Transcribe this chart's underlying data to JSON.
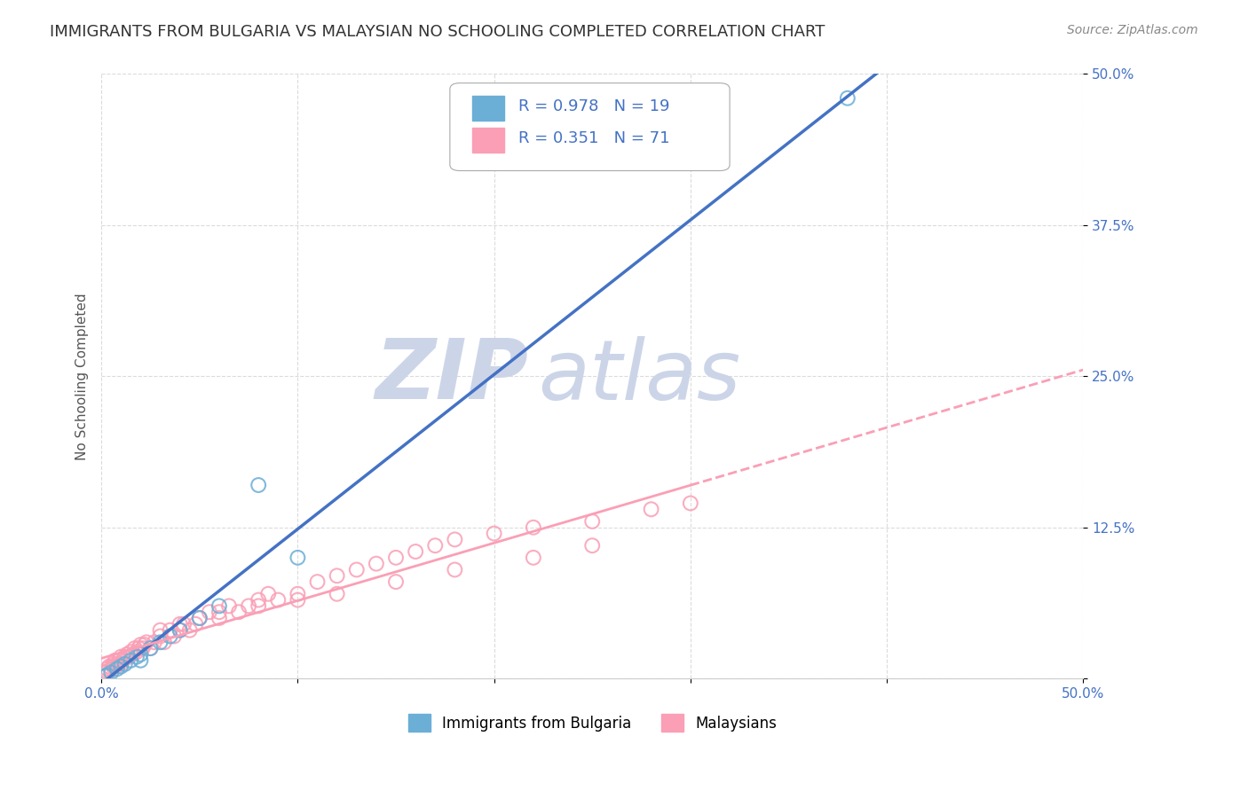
{
  "title": "IMMIGRANTS FROM BULGARIA VS MALAYSIAN NO SCHOOLING COMPLETED CORRELATION CHART",
  "source": "Source: ZipAtlas.com",
  "ylabel": "No Schooling Completed",
  "xlabel": "",
  "xlim": [
    0.0,
    0.5
  ],
  "ylim": [
    0.0,
    0.5
  ],
  "xticks": [
    0.0,
    0.1,
    0.2,
    0.3,
    0.4,
    0.5
  ],
  "yticks": [
    0.0,
    0.125,
    0.25,
    0.375,
    0.5
  ],
  "xticklabels": [
    "0.0%",
    "",
    "",
    "",
    "",
    "50.0%"
  ],
  "yticklabels": [
    "",
    "12.5%",
    "25.0%",
    "37.5%",
    "50.0%"
  ],
  "bulgaria_color": "#6baed6",
  "malaysia_color": "#fa9fb5",
  "bulgaria_R": 0.978,
  "bulgaria_N": 19,
  "malaysia_R": 0.351,
  "malaysia_N": 71,
  "legend_label_bulgaria": "Immigrants from Bulgaria",
  "legend_label_malaysia": "Malaysians",
  "watermark_part1": "ZIP",
  "watermark_part2": "atlas",
  "watermark_color": "#ccd5e8",
  "bulgaria_scatter_x": [
    0.002,
    0.003,
    0.005,
    0.008,
    0.01,
    0.012,
    0.015,
    0.018,
    0.02,
    0.025,
    0.03,
    0.035,
    0.04,
    0.05,
    0.06,
    0.08,
    0.1,
    0.38,
    0.02
  ],
  "bulgaria_scatter_y": [
    0.002,
    0.003,
    0.005,
    0.008,
    0.01,
    0.012,
    0.015,
    0.018,
    0.02,
    0.025,
    0.03,
    0.035,
    0.04,
    0.05,
    0.06,
    0.16,
    0.1,
    0.48,
    0.015
  ],
  "malaysia_scatter_x": [
    0.001,
    0.002,
    0.003,
    0.003,
    0.004,
    0.005,
    0.006,
    0.006,
    0.007,
    0.008,
    0.008,
    0.009,
    0.01,
    0.01,
    0.011,
    0.012,
    0.013,
    0.014,
    0.015,
    0.016,
    0.017,
    0.018,
    0.019,
    0.02,
    0.021,
    0.022,
    0.023,
    0.025,
    0.027,
    0.03,
    0.032,
    0.035,
    0.037,
    0.04,
    0.042,
    0.045,
    0.048,
    0.05,
    0.055,
    0.06,
    0.065,
    0.07,
    0.075,
    0.08,
    0.085,
    0.09,
    0.1,
    0.11,
    0.12,
    0.13,
    0.14,
    0.15,
    0.16,
    0.17,
    0.18,
    0.2,
    0.22,
    0.25,
    0.28,
    0.3,
    0.22,
    0.25,
    0.18,
    0.15,
    0.12,
    0.1,
    0.08,
    0.06,
    0.05,
    0.04,
    0.03
  ],
  "malaysia_scatter_y": [
    0.005,
    0.005,
    0.008,
    0.006,
    0.01,
    0.008,
    0.01,
    0.012,
    0.015,
    0.01,
    0.012,
    0.015,
    0.012,
    0.018,
    0.015,
    0.018,
    0.02,
    0.018,
    0.022,
    0.02,
    0.025,
    0.022,
    0.025,
    0.028,
    0.025,
    0.028,
    0.03,
    0.025,
    0.03,
    0.035,
    0.03,
    0.04,
    0.035,
    0.04,
    0.045,
    0.04,
    0.045,
    0.05,
    0.055,
    0.05,
    0.06,
    0.055,
    0.06,
    0.065,
    0.07,
    0.065,
    0.07,
    0.08,
    0.085,
    0.09,
    0.095,
    0.1,
    0.105,
    0.11,
    0.115,
    0.12,
    0.125,
    0.13,
    0.14,
    0.145,
    0.1,
    0.11,
    0.09,
    0.08,
    0.07,
    0.065,
    0.06,
    0.055,
    0.05,
    0.045,
    0.04
  ],
  "grid_color": "#cccccc",
  "bg_color": "#ffffff",
  "title_fontsize": 13,
  "axis_label_fontsize": 11,
  "tick_fontsize": 11
}
